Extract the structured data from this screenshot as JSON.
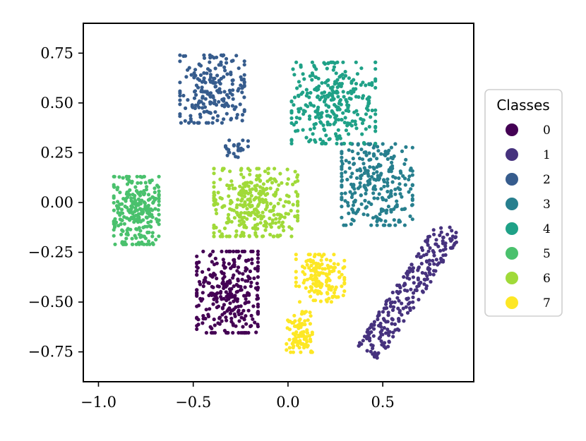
{
  "chart_data": {
    "type": "scatter",
    "title": "",
    "xlabel": "",
    "ylabel": "",
    "xlim": [
      -1.08,
      0.98
    ],
    "ylim": [
      -0.9,
      0.9
    ],
    "x_ticks": [
      -1.0,
      -0.5,
      0.0,
      0.5
    ],
    "x_tick_labels": [
      "−1.0",
      "−0.5",
      "0.0",
      "0.5"
    ],
    "y_ticks": [
      0.75,
      0.5,
      0.25,
      0.0,
      -0.25,
      -0.5,
      -0.75
    ],
    "y_tick_labels": [
      "0.75",
      "0.50",
      "0.25",
      "0.00",
      "−0.25",
      "−0.50",
      "−0.75"
    ],
    "grid": false,
    "legend": {
      "title": "Classes",
      "placement": "outside-right",
      "entries": [
        "0",
        "1",
        "2",
        "3",
        "4",
        "5",
        "6",
        "7"
      ]
    },
    "series": [
      {
        "label": "0",
        "color": "#440154",
        "count": 300,
        "clusters": [
          {
            "cx": -0.32,
            "cy": -0.45,
            "sx": 0.095,
            "sy": 0.12,
            "n": 300
          }
        ]
      },
      {
        "label": "1",
        "color": "#46327e",
        "count": 260,
        "clusters": [
          {
            "band": true,
            "x1": 0.42,
            "y1": -0.76,
            "x2": 0.86,
            "y2": -0.12,
            "w": 0.07,
            "n": 260
          }
        ]
      },
      {
        "label": "2",
        "color": "#365c8d",
        "count": 240,
        "clusters": [
          {
            "cx": -0.4,
            "cy": 0.57,
            "sx": 0.1,
            "sy": 0.1,
            "n": 215
          },
          {
            "cx": -0.27,
            "cy": 0.27,
            "sx": 0.035,
            "sy": 0.025,
            "n": 25
          }
        ]
      },
      {
        "label": "3",
        "color": "#277f8e",
        "count": 270,
        "clusters": [
          {
            "cx": 0.47,
            "cy": 0.09,
            "sx": 0.11,
            "sy": 0.12,
            "n": 270
          }
        ]
      },
      {
        "label": "4",
        "color": "#1fa187",
        "count": 300,
        "clusters": [
          {
            "cx": 0.24,
            "cy": 0.5,
            "sx": 0.13,
            "sy": 0.12,
            "n": 300
          }
        ]
      },
      {
        "label": "5",
        "color": "#4ac16d",
        "count": 260,
        "clusters": [
          {
            "cx": -0.8,
            "cy": -0.04,
            "sx": 0.07,
            "sy": 0.1,
            "n": 260
          }
        ]
      },
      {
        "label": "6",
        "color": "#a0da39",
        "count": 330,
        "clusters": [
          {
            "cx": -0.17,
            "cy": 0.0,
            "sx": 0.13,
            "sy": 0.1,
            "n": 330
          }
        ]
      },
      {
        "label": "7",
        "color": "#fde725",
        "count": 240,
        "clusters": [
          {
            "cx": 0.17,
            "cy": -0.38,
            "sx": 0.075,
            "sy": 0.07,
            "n": 150
          },
          {
            "cx": 0.06,
            "cy": -0.65,
            "sx": 0.04,
            "sy": 0.06,
            "n": 90
          }
        ]
      }
    ]
  }
}
